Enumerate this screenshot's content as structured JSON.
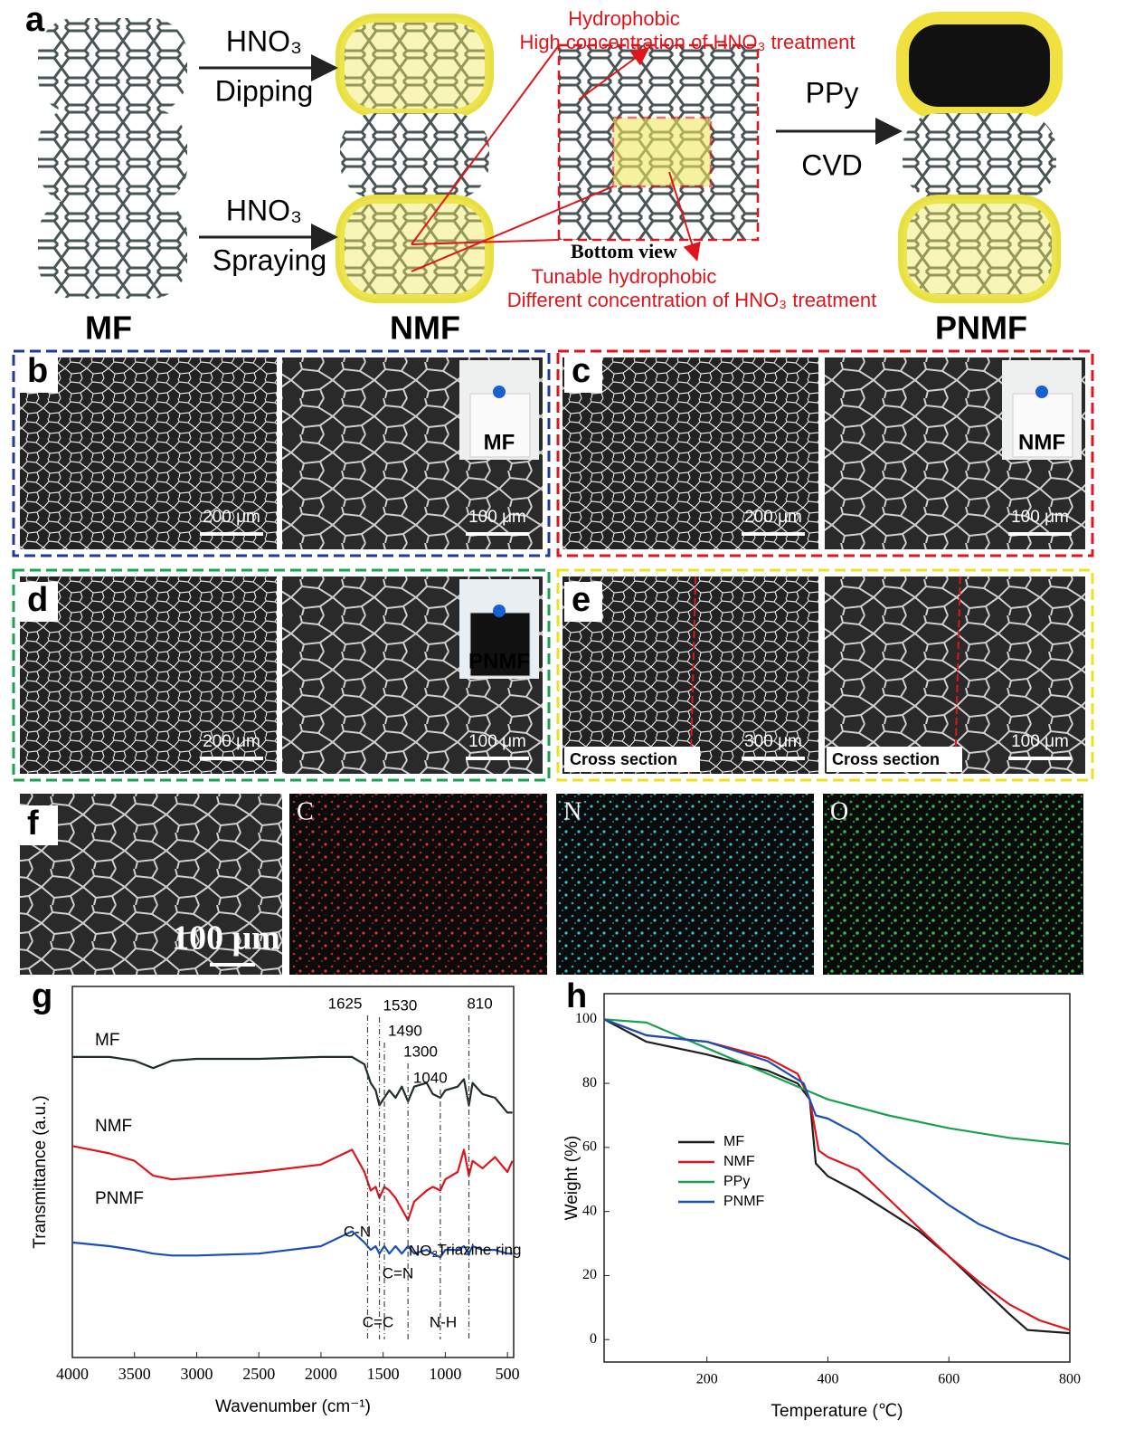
{
  "panel_labels": [
    "a",
    "b",
    "c",
    "d",
    "e",
    "f",
    "g",
    "h"
  ],
  "schematic": {
    "arrows": [
      {
        "reagent": "HNO₃",
        "method": "Dipping"
      },
      {
        "reagent": "HNO₃",
        "method": "Spraying"
      },
      {
        "reagent": "PPy",
        "method": "CVD"
      }
    ],
    "materials": [
      "MF",
      "NMF",
      "PNMF"
    ],
    "top_note": [
      "Hydrophobic",
      "High concentration of HNO₃ treatment"
    ],
    "bottom_view": "Bottom view",
    "bottom_note": [
      "Tunable hydrophobic",
      "Different concentration of HNO₃ treatment"
    ]
  },
  "sem": {
    "images": [
      {
        "scale": "200 μm"
      },
      {
        "scale": "100 μm",
        "inset": "MF"
      },
      {
        "scale": "200 μm"
      },
      {
        "scale": "100 μm",
        "inset": "NMF"
      },
      {
        "scale": "200 μm"
      },
      {
        "scale": "100 μm",
        "inset": "PNMF"
      },
      {
        "scale": "300 μm",
        "caption": "Cross section"
      },
      {
        "scale": "100 μm",
        "caption": "Cross section"
      }
    ]
  },
  "eds": {
    "scale": "100 μm",
    "elements": [
      "C",
      "N",
      "O"
    ]
  },
  "chart_data": [
    {
      "type": "line",
      "xlabel": "Wavenumber (cm⁻¹)",
      "ylabel": "Transmittance (a.u.)",
      "x": [
        4000,
        3700,
        3500,
        3350,
        3200,
        3000,
        2500,
        2000,
        1750,
        1650,
        1600,
        1560,
        1530,
        1490,
        1450,
        1400,
        1350,
        1300,
        1250,
        1150,
        1100,
        1040,
        1000,
        900,
        850,
        810,
        780,
        700,
        600,
        500,
        460
      ],
      "series": [
        {
          "name": "MF",
          "color": "#1f2d2d",
          "values": [
            81,
            81,
            80,
            78,
            80,
            80.5,
            80.5,
            81,
            81,
            79,
            74,
            72,
            68,
            70,
            72,
            70,
            73,
            69,
            73,
            74,
            71,
            70,
            72,
            73,
            75,
            68,
            74,
            71,
            70,
            66,
            66
          ]
        },
        {
          "name": "NMF",
          "color": "#e0141b",
          "values": [
            57,
            55,
            53,
            49,
            48,
            48.5,
            50,
            52,
            56,
            50,
            45,
            46,
            43,
            46,
            45,
            43,
            40,
            37,
            42,
            45,
            46,
            45,
            48,
            50,
            56,
            49,
            53,
            51,
            54,
            50,
            53
          ]
        },
        {
          "name": "PNMF",
          "color": "#1a4fb5",
          "values": [
            31,
            30,
            29,
            28,
            27.5,
            27.5,
            28,
            30,
            34,
            31,
            29,
            30,
            28,
            30,
            28,
            30,
            28,
            30,
            28,
            29,
            28,
            27,
            29,
            29,
            30,
            28,
            30,
            29,
            29,
            28,
            28
          ]
        }
      ],
      "xlim": [
        4000,
        450
      ],
      "xticks": [
        4000,
        3500,
        3000,
        2500,
        2000,
        1500,
        1000,
        500
      ],
      "ylim": [
        0,
        100
      ],
      "peaks": [
        1625,
        1530,
        1490,
        1300,
        1040,
        810
      ],
      "annotations": [
        "C-N",
        "C=N",
        "NO₂",
        "Triazine ring",
        "C=C",
        "N-H"
      ],
      "grid": false
    },
    {
      "type": "line",
      "xlabel": "Temperature (℃)",
      "ylabel": "Weight (%)",
      "series": [
        {
          "name": "MF",
          "color": "#1f1f1f",
          "x": [
            30,
            100,
            200,
            300,
            350,
            370,
            380,
            400,
            450,
            500,
            550,
            600,
            650,
            700,
            730,
            800
          ],
          "values": [
            100,
            93,
            89,
            84,
            80,
            75,
            55,
            51,
            46,
            40,
            34,
            26,
            17,
            8,
            3,
            2
          ]
        },
        {
          "name": "NMF",
          "color": "#e0141b",
          "x": [
            30,
            100,
            200,
            300,
            350,
            370,
            385,
            400,
            450,
            500,
            550,
            600,
            650,
            700,
            750,
            800
          ],
          "values": [
            100,
            95,
            93,
            88,
            83,
            75,
            59,
            57,
            53,
            44,
            35,
            26,
            18,
            11,
            6,
            3
          ]
        },
        {
          "name": "PPy",
          "color": "#1aa050",
          "x": [
            30,
            100,
            200,
            300,
            400,
            500,
            600,
            700,
            800
          ],
          "values": [
            100,
            99,
            91,
            83,
            75,
            70,
            66,
            63,
            61
          ]
        },
        {
          "name": "PNMF",
          "color": "#1a4fb5",
          "x": [
            30,
            100,
            200,
            300,
            360,
            380,
            400,
            450,
            500,
            550,
            600,
            650,
            700,
            750,
            800
          ],
          "values": [
            100,
            95,
            93,
            87,
            80,
            70,
            69,
            64,
            56,
            49,
            42,
            36,
            32,
            29,
            25
          ]
        }
      ],
      "xlim": [
        30,
        800
      ],
      "xticks": [
        200,
        400,
        600,
        800
      ],
      "ylim": [
        -7,
        108
      ],
      "yticks": [
        0,
        20,
        40,
        60,
        80,
        100
      ],
      "legend": "center-left",
      "grid": false
    }
  ]
}
